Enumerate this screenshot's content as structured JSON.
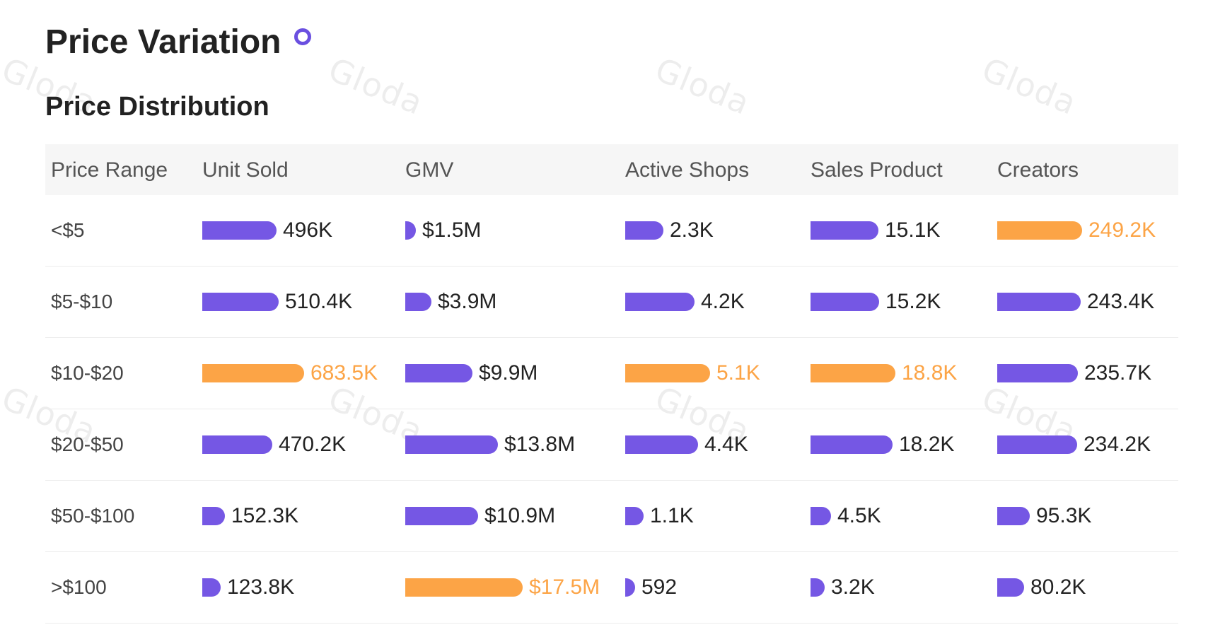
{
  "header": {
    "title": "Price Variation",
    "section_title": "Price Distribution"
  },
  "watermark_text": "Gloda",
  "colors": {
    "bar": "#7557e4",
    "max": "#fca446",
    "header_bg": "#f6f6f6",
    "info_icon": "#6a4fe0"
  },
  "table": {
    "columns": [
      "Price Range",
      "Unit Sold",
      "GMV",
      "Active Shops",
      "Sales Product",
      "Creators"
    ],
    "rows": [
      {
        "range": "<$5",
        "cells": [
          {
            "value": "496K",
            "fraction": 0.73,
            "max": false
          },
          {
            "value": "$1.5M",
            "fraction": 0.09,
            "max": false
          },
          {
            "value": "2.3K",
            "fraction": 0.45,
            "max": false
          },
          {
            "value": "15.1K",
            "fraction": 0.8,
            "max": false
          },
          {
            "value": "249.2K",
            "fraction": 1.0,
            "max": true
          }
        ]
      },
      {
        "range": "$5-$10",
        "cells": [
          {
            "value": "510.4K",
            "fraction": 0.75,
            "max": false
          },
          {
            "value": "$3.9M",
            "fraction": 0.22,
            "max": false
          },
          {
            "value": "4.2K",
            "fraction": 0.82,
            "max": false
          },
          {
            "value": "15.2K",
            "fraction": 0.81,
            "max": false
          },
          {
            "value": "243.4K",
            "fraction": 0.98,
            "max": false
          }
        ]
      },
      {
        "range": "$10-$20",
        "cells": [
          {
            "value": "683.5K",
            "fraction": 1.0,
            "max": true
          },
          {
            "value": "$9.9M",
            "fraction": 0.57,
            "max": false
          },
          {
            "value": "5.1K",
            "fraction": 1.0,
            "max": true
          },
          {
            "value": "18.8K",
            "fraction": 1.0,
            "max": true
          },
          {
            "value": "235.7K",
            "fraction": 0.95,
            "max": false
          }
        ]
      },
      {
        "range": "$20-$50",
        "cells": [
          {
            "value": "470.2K",
            "fraction": 0.69,
            "max": false
          },
          {
            "value": "$13.8M",
            "fraction": 0.79,
            "max": false
          },
          {
            "value": "4.4K",
            "fraction": 0.86,
            "max": false
          },
          {
            "value": "18.2K",
            "fraction": 0.97,
            "max": false
          },
          {
            "value": "234.2K",
            "fraction": 0.94,
            "max": false
          }
        ]
      },
      {
        "range": "$50-$100",
        "cells": [
          {
            "value": "152.3K",
            "fraction": 0.22,
            "max": false
          },
          {
            "value": "$10.9M",
            "fraction": 0.62,
            "max": false
          },
          {
            "value": "1.1K",
            "fraction": 0.22,
            "max": false
          },
          {
            "value": "4.5K",
            "fraction": 0.24,
            "max": false
          },
          {
            "value": "95.3K",
            "fraction": 0.38,
            "max": false
          }
        ]
      },
      {
        "range": ">$100",
        "cells": [
          {
            "value": "123.8K",
            "fraction": 0.18,
            "max": false
          },
          {
            "value": "$17.5M",
            "fraction": 1.0,
            "max": true
          },
          {
            "value": "592",
            "fraction": 0.12,
            "max": false
          },
          {
            "value": "3.2K",
            "fraction": 0.17,
            "max": false
          },
          {
            "value": "80.2K",
            "fraction": 0.32,
            "max": false
          }
        ]
      }
    ]
  }
}
